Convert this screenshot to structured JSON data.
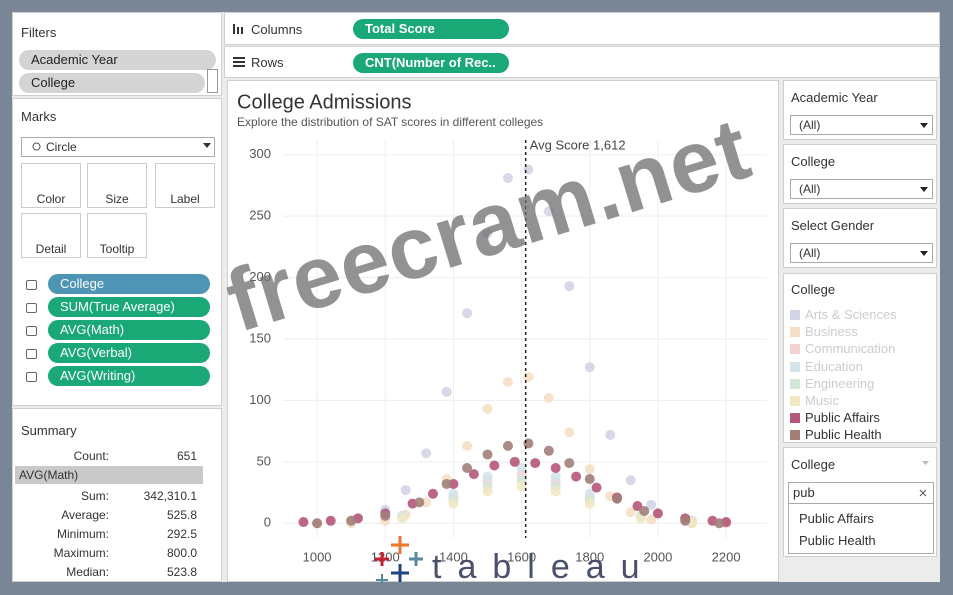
{
  "filters_shelf": {
    "title": "Filters",
    "items": [
      "Academic Year",
      "College"
    ]
  },
  "marks": {
    "title": "Marks",
    "mark_type": "Circle",
    "buttons": [
      "Color",
      "Size",
      "Label",
      "Detail",
      "Tooltip"
    ],
    "pills": [
      "College",
      "SUM(True Average)",
      "AVG(Math)",
      "AVG(Verbal)",
      "AVG(Writing)"
    ]
  },
  "summary": {
    "title": "Summary",
    "count_label": "Count:",
    "count": "651",
    "field": "AVG(Math)",
    "rows": [
      [
        "Sum:",
        "342,310.1"
      ],
      [
        "Average:",
        "525.8"
      ],
      [
        "Minimum:",
        "292.5"
      ],
      [
        "Maximum:",
        "800.0"
      ],
      [
        "Median:",
        "523.8"
      ]
    ]
  },
  "shelves": {
    "columns_label": "Columns",
    "columns_pill": "Total Score",
    "rows_label": "Rows",
    "rows_pill": "CNT(Number of Rec.."
  },
  "right_panel": {
    "filters": [
      {
        "title": "Academic Year",
        "value": "(All)"
      },
      {
        "title": "College",
        "value": "(All)"
      },
      {
        "title": "Select Gender",
        "value": "(All)"
      }
    ],
    "legend_title": "College",
    "search": {
      "title": "College",
      "query": "pub",
      "results": [
        "Public Affairs",
        "Public Health"
      ]
    }
  },
  "watermark": "freecram.net",
  "logo": "tableau",
  "chart_data": {
    "type": "scatter",
    "title": "College Admissions",
    "subtitle": "Explore the distribution of SAT scores in different colleges",
    "xlim": [
      900,
      2320
    ],
    "ylim": [
      -12,
      312
    ],
    "xticks": [
      1000,
      1200,
      1400,
      1600,
      1800,
      2000,
      2200
    ],
    "yticks": [
      0,
      50,
      100,
      150,
      200,
      250,
      300
    ],
    "grid": true,
    "reference": {
      "value": 1612,
      "label": "Avg Score 1,612"
    },
    "series": [
      {
        "name": "Arts & Sciences",
        "color": "#d3d5e6",
        "x": [
          1000,
          1100,
          1200,
          1260,
          1320,
          1380,
          1440,
          1500,
          1560,
          1620,
          1680,
          1740,
          1800,
          1860,
          1920,
          1980,
          2100,
          2200
        ],
        "values": [
          0,
          2,
          11,
          27,
          57,
          107,
          171,
          236,
          281,
          288,
          254,
          193,
          127,
          72,
          35,
          15,
          2,
          0
        ]
      },
      {
        "name": "Business",
        "color": "#f6dfc6",
        "x": [
          1000,
          1100,
          1200,
          1260,
          1320,
          1380,
          1440,
          1500,
          1560,
          1620,
          1680,
          1740,
          1800,
          1860,
          1920,
          1980,
          2100,
          2200
        ],
        "values": [
          0,
          0,
          2,
          7,
          17,
          36,
          63,
          93,
          115,
          119,
          102,
          74,
          44,
          22,
          9,
          3,
          0,
          0
        ]
      },
      {
        "name": "Communication",
        "color": "#f5d2d2",
        "x": [
          1100,
          1250,
          1400,
          1500,
          1600,
          1700,
          1800,
          1950,
          2100
        ],
        "values": [
          1,
          6,
          21,
          34,
          40,
          34,
          21,
          6,
          1
        ]
      },
      {
        "name": "Education",
        "color": "#d5e4ea",
        "x": [
          1100,
          1250,
          1400,
          1500,
          1600,
          1700,
          1800,
          1950,
          2100
        ],
        "values": [
          1,
          6,
          24,
          38,
          45,
          38,
          24,
          6,
          1
        ]
      },
      {
        "name": "Engineering",
        "color": "#d2e5d7",
        "x": [
          1100,
          1250,
          1400,
          1500,
          1600,
          1700,
          1800,
          1950,
          2100
        ],
        "values": [
          1,
          5,
          19,
          30,
          35,
          30,
          19,
          5,
          1
        ]
      },
      {
        "name": "Music",
        "color": "#f1e8c4",
        "x": [
          1100,
          1250,
          1400,
          1500,
          1600,
          1700,
          1800,
          1950,
          2100
        ],
        "values": [
          1,
          4,
          16,
          26,
          30,
          26,
          16,
          4,
          1
        ]
      },
      {
        "name": "Public Affairs",
        "color": "#b5577a",
        "x": [
          960,
          1040,
          1120,
          1200,
          1280,
          1340,
          1400,
          1460,
          1520,
          1580,
          1640,
          1700,
          1760,
          1820,
          1880,
          1940,
          2000,
          2080,
          2160,
          2200
        ],
        "values": [
          1,
          2,
          4,
          8,
          16,
          24,
          32,
          40,
          47,
          50,
          49,
          45,
          38,
          29,
          21,
          14,
          8,
          4,
          2,
          1
        ]
      },
      {
        "name": "Public Health",
        "color": "#a27e79",
        "x": [
          1000,
          1100,
          1200,
          1300,
          1380,
          1440,
          1500,
          1560,
          1620,
          1680,
          1740,
          1800,
          1880,
          1960,
          2080,
          2180
        ],
        "values": [
          0,
          2,
          6,
          17,
          32,
          45,
          56,
          63,
          65,
          59,
          49,
          36,
          20,
          10,
          2,
          0
        ]
      }
    ]
  }
}
